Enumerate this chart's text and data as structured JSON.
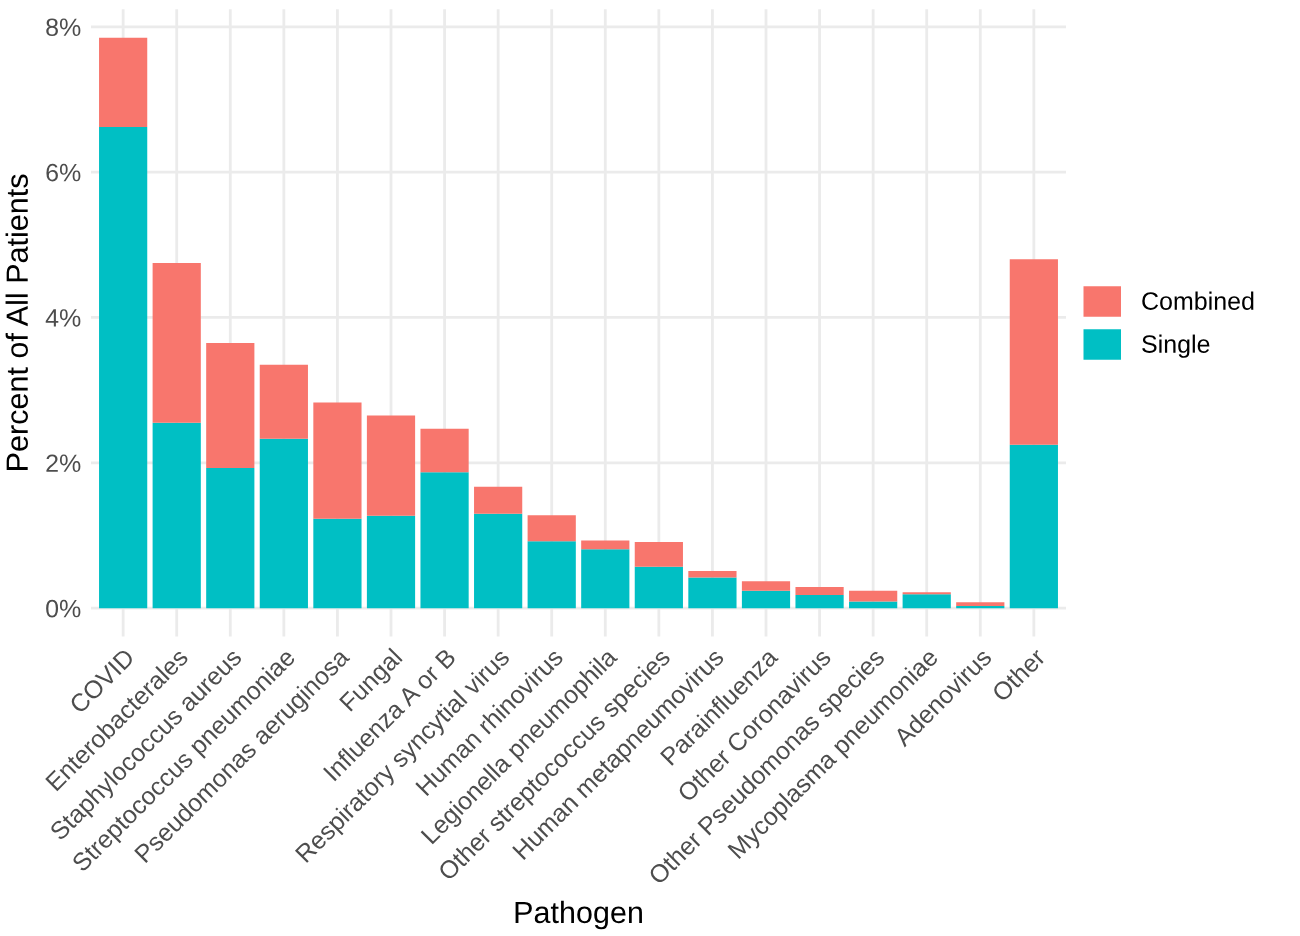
{
  "chart_data": {
    "type": "bar",
    "stacked": true,
    "xlabel": "Pathogen",
    "ylabel": "Percent of All Patients",
    "categories": [
      "COVID",
      "Enterobacterales",
      "Staphylococcus aureus",
      "Streptococcus pneumoniae",
      "Pseudomonas aeruginosa",
      "Fungal",
      "Influenza A or B",
      "Respiratory syncytial virus",
      "Human rhinovirus",
      "Legionella pneumophila",
      "Other streptococcus species",
      "Human metapneumovirus",
      "Parainfluenza",
      "Other Coronavirus",
      "Other Pseudomonas species",
      "Mycoplasma pneumoniae",
      "Adenovirus",
      "Other"
    ],
    "series": [
      {
        "name": "Single",
        "color": "#00bfc4",
        "values": [
          6.62,
          2.55,
          1.93,
          2.33,
          1.23,
          1.27,
          1.87,
          1.3,
          0.92,
          0.81,
          0.57,
          0.42,
          0.24,
          0.18,
          0.09,
          0.19,
          0.03,
          2.25
        ]
      },
      {
        "name": "Combined",
        "color": "#f8766d",
        "values": [
          1.23,
          2.2,
          1.72,
          1.02,
          1.6,
          1.38,
          0.6,
          0.37,
          0.36,
          0.12,
          0.34,
          0.09,
          0.13,
          0.11,
          0.15,
          0.03,
          0.05,
          2.55
        ]
      }
    ],
    "ylim": [
      -0.39,
      8.24
    ],
    "yticks": [
      {
        "value": 0,
        "label": "0%"
      },
      {
        "value": 2,
        "label": "2%"
      },
      {
        "value": 4,
        "label": "4%"
      },
      {
        "value": 6,
        "label": "6%"
      },
      {
        "value": 8,
        "label": "8%"
      }
    ],
    "grid": true,
    "legend": "right"
  }
}
